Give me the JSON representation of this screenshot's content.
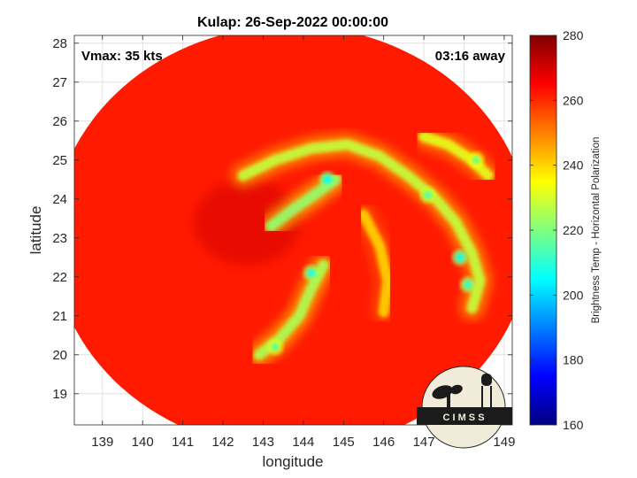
{
  "chart_data": {
    "type": "heatmap",
    "title": "Kulap: 26-Sep-2022 00:00:00",
    "xlabel": "longitude",
    "ylabel": "latitude",
    "xlim": [
      138.3,
      149.2
    ],
    "ylim": [
      18.2,
      28.2
    ],
    "xticks": [
      139,
      140,
      141,
      142,
      143,
      144,
      145,
      146,
      147,
      148,
      149
    ],
    "yticks": [
      19,
      20,
      21,
      22,
      23,
      24,
      25,
      26,
      27,
      28
    ],
    "grid": true,
    "annotations": {
      "left": "Vmax: 35 kts",
      "right": "03:16 away"
    },
    "colorbar": {
      "label": "Brightness Temp - Horizontal Polarization",
      "range": [
        160,
        280
      ],
      "ticks": [
        160,
        180,
        200,
        220,
        240,
        260,
        280
      ],
      "colormap": "jet"
    },
    "swath": {
      "center_lon": 143.7,
      "center_lat": 23.0,
      "radius_lon": 5.95,
      "radius_lat": 5.45,
      "background_value": 262
    },
    "features": [
      {
        "name": "outer band north",
        "path": [
          [
            142.5,
            24.6
          ],
          [
            143.3,
            25.0
          ],
          [
            144.2,
            25.3
          ],
          [
            145.1,
            25.4
          ],
          [
            145.9,
            25.1
          ],
          [
            146.6,
            24.6
          ],
          [
            147.3,
            24.0
          ],
          [
            147.8,
            23.4
          ],
          [
            148.2,
            22.6
          ],
          [
            148.4,
            21.9
          ],
          [
            148.2,
            21.2
          ]
        ],
        "value": 228
      },
      {
        "name": "central band",
        "path": [
          [
            143.2,
            23.3
          ],
          [
            143.7,
            23.7
          ],
          [
            144.4,
            24.2
          ],
          [
            144.8,
            24.5
          ]
        ],
        "value": 222
      },
      {
        "name": "southern band",
        "path": [
          [
            144.5,
            22.3
          ],
          [
            144.2,
            21.7
          ],
          [
            143.9,
            21.0
          ],
          [
            143.4,
            20.4
          ],
          [
            142.9,
            20.0
          ]
        ],
        "value": 225
      },
      {
        "name": "northeast band",
        "path": [
          [
            147.0,
            25.6
          ],
          [
            147.6,
            25.4
          ],
          [
            148.2,
            25.0
          ],
          [
            148.6,
            24.6
          ]
        ],
        "value": 232
      },
      {
        "name": "inner eastern arc",
        "path": [
          [
            145.5,
            23.6
          ],
          [
            145.9,
            22.8
          ],
          [
            146.1,
            21.9
          ],
          [
            146.0,
            21.1
          ]
        ],
        "value": 240
      }
    ],
    "hotspots": [
      {
        "lon": 144.6,
        "lat": 24.5,
        "value": 205
      },
      {
        "lon": 144.2,
        "lat": 22.1,
        "value": 208
      },
      {
        "lon": 147.9,
        "lat": 22.5,
        "value": 206
      },
      {
        "lon": 148.1,
        "lat": 21.8,
        "value": 210
      },
      {
        "lon": 147.1,
        "lat": 24.1,
        "value": 214
      },
      {
        "lon": 143.3,
        "lat": 20.2,
        "value": 216
      },
      {
        "lon": 148.3,
        "lat": 25.0,
        "value": 218
      }
    ]
  },
  "logo": {
    "text": "C I M S S"
  }
}
